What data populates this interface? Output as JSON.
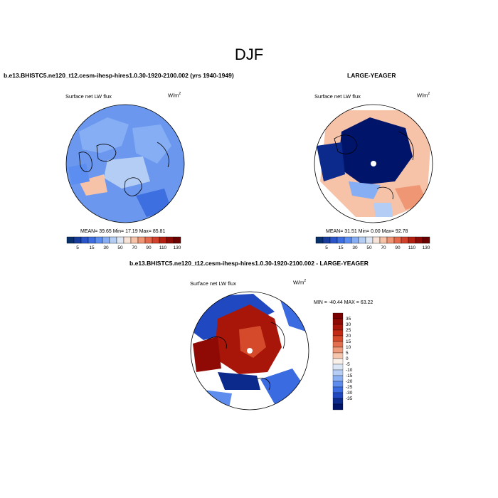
{
  "main_title": "DJF",
  "panels": [
    {
      "title": "b.e13.BHISTC5.ne120_t12.cesm-ihesp-hires1.0.30-1920-2100.002 (yrs 1940-1949)",
      "variable": "Surface net LW flux",
      "units": "W/m",
      "units_sup": "2",
      "stats": {
        "mean_label": "MEAN=",
        "mean": "39.65",
        "min_label": "Min=",
        "min": "17.19",
        "max_label": "Max=",
        "max": "85.81"
      }
    },
    {
      "title": "LARGE-YEAGER",
      "variable": "Surface net LW flux",
      "units": "W/m",
      "units_sup": "2",
      "stats": {
        "mean_label": "MEAN=",
        "mean": "31.51",
        "min_label": "Min=",
        "min": "0.00",
        "max_label": "Max=",
        "max": "92.78"
      }
    },
    {
      "title": "b.e13.BHISTC5.ne120_t12.cesm-ihesp-hires1.0.30-1920-2100.002 - LARGE-YEAGER",
      "variable": "Surface net LW flux",
      "units": "W/m",
      "units_sup": "2",
      "stats": {
        "min_label": "MIN =",
        "min": "-40.44",
        "max_label": "MAX =",
        "max": "63.22"
      }
    }
  ],
  "colorbar_abs": {
    "labels": [
      "5",
      "15",
      "30",
      "50",
      "70",
      "90",
      "110",
      "130"
    ],
    "colors": [
      "#08306b",
      "#163d9c",
      "#2a55c8",
      "#3d6fe0",
      "#5b8ef0",
      "#86aef5",
      "#b4cdf5",
      "#dde6f2",
      "#f7e3d8",
      "#f6c2a8",
      "#ef9775",
      "#e56a4b",
      "#d0402a",
      "#b3200f",
      "#8c0a04",
      "#6a0000"
    ]
  },
  "colorbar_diff": {
    "labels": [
      "35",
      "30",
      "25",
      "20",
      "15",
      "10",
      "5",
      "0",
      "-5",
      "-10",
      "-15",
      "-20",
      "-25",
      "-30",
      "-35"
    ],
    "colors": [
      "#7a0000",
      "#8f0a04",
      "#a8160a",
      "#c22a14",
      "#d44a2a",
      "#e27050",
      "#ee9a7c",
      "#f6c5ad",
      "#faf0ea",
      "#dbe6f7",
      "#b7cdf5",
      "#8cb0f2",
      "#5f8ded",
      "#3b6be0",
      "#2048c0",
      "#0b2a8c",
      "#00146a"
    ]
  }
}
